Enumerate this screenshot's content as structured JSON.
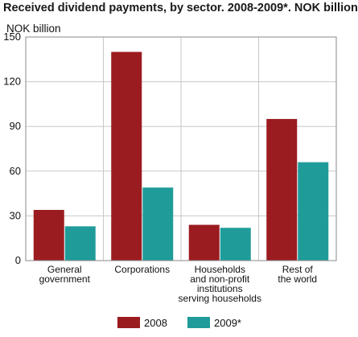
{
  "title": "Received dividend payments, by sector. 2008-2009*. NOK billion",
  "colors": {
    "s2008": "#9b1c20",
    "s2009": "#1f9c9a",
    "grid": "#c8c8c8",
    "frame": "#8a8a8a"
  },
  "chart_data": {
    "type": "bar",
    "title": "Received dividend payments, by sector. 2008-2009*. NOK billion",
    "ylabel": "NOK billion",
    "xlabel": "",
    "ylim": [
      0,
      150
    ],
    "yticks": [
      0,
      30,
      60,
      90,
      120,
      150
    ],
    "categories": [
      [
        "General",
        "government"
      ],
      [
        "Corporations"
      ],
      [
        "Households",
        "and non-profit",
        "institutions",
        "serving households"
      ],
      [
        "Rest of",
        "the world"
      ]
    ],
    "series": [
      {
        "name": "2008",
        "values": [
          34,
          140,
          24,
          95
        ]
      },
      {
        "name": "2009*",
        "values": [
          23,
          49,
          22,
          66
        ]
      }
    ],
    "grid": true,
    "legend": "bottom-center"
  }
}
